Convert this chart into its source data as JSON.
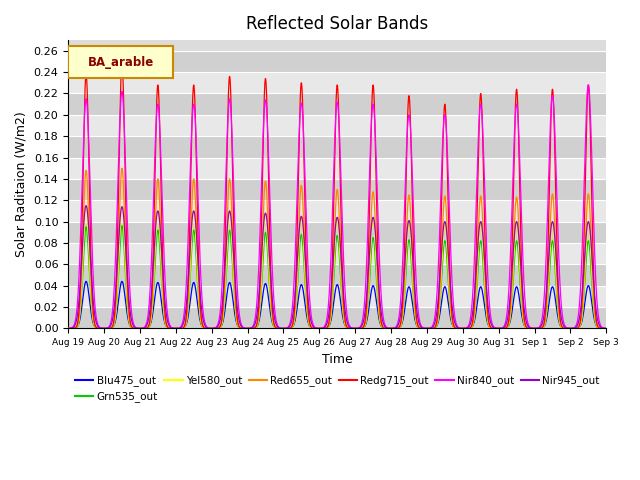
{
  "title": "Reflected Solar Bands",
  "xlabel": "Time",
  "ylabel": "Solar Raditaion (W/m2)",
  "ylim": [
    0,
    0.27
  ],
  "yticks": [
    0.0,
    0.02,
    0.04,
    0.06,
    0.08,
    0.1,
    0.12,
    0.14,
    0.16,
    0.18,
    0.2,
    0.22,
    0.24,
    0.26
  ],
  "legend_label": "BA_arable",
  "n_days": 15,
  "points_per_day": 500,
  "start_day": 19,
  "bg_color": "#dcdcdc",
  "title_fontsize": 12,
  "axis_fontsize": 9,
  "peak_hw": 0.1,
  "special_peaks": {
    "Redg715_out": [
      0.238,
      0.248,
      0.228,
      0.228,
      0.236,
      0.234,
      0.23,
      0.228,
      0.228,
      0.218,
      0.21,
      0.22,
      0.224,
      0.224,
      0.228
    ],
    "Nir840_out": [
      0.215,
      0.222,
      0.21,
      0.21,
      0.215,
      0.214,
      0.211,
      0.212,
      0.21,
      0.2,
      0.2,
      0.21,
      0.21,
      0.218,
      0.228
    ],
    "Red655_out": [
      0.148,
      0.15,
      0.14,
      0.14,
      0.14,
      0.138,
      0.134,
      0.13,
      0.128,
      0.125,
      0.124,
      0.124,
      0.123,
      0.126,
      0.126
    ],
    "Yel580_out": [
      0.115,
      0.114,
      0.11,
      0.11,
      0.11,
      0.108,
      0.105,
      0.104,
      0.104,
      0.101,
      0.1,
      0.1,
      0.1,
      0.1,
      0.1
    ],
    "Grn535_out": [
      0.095,
      0.096,
      0.092,
      0.092,
      0.092,
      0.09,
      0.088,
      0.087,
      0.085,
      0.083,
      0.082,
      0.082,
      0.082,
      0.082,
      0.082
    ],
    "Blu475_out": [
      0.044,
      0.044,
      0.043,
      0.043,
      0.043,
      0.042,
      0.041,
      0.041,
      0.04,
      0.039,
      0.039,
      0.039,
      0.039,
      0.039,
      0.04
    ],
    "Nir945_out": [
      0.115,
      0.114,
      0.11,
      0.11,
      0.11,
      0.108,
      0.105,
      0.104,
      0.104,
      0.101,
      0.1,
      0.1,
      0.1,
      0.1,
      0.1
    ]
  },
  "band_configs": {
    "Blu475_out": {
      "color": "#0000ff"
    },
    "Grn535_out": {
      "color": "#00cc00"
    },
    "Yel580_out": {
      "color": "#ffff00"
    },
    "Red655_out": {
      "color": "#ff8800"
    },
    "Redg715_out": {
      "color": "#ff0000"
    },
    "Nir840_out": {
      "color": "#ff00ff"
    },
    "Nir945_out": {
      "color": "#9900cc"
    }
  },
  "band_order": [
    "Blu475_out",
    "Grn535_out",
    "Yel580_out",
    "Red655_out",
    "Redg715_out",
    "Nir840_out",
    "Nir945_out"
  ],
  "legend_entries": [
    {
      "label": "Blu475_out",
      "color": "#0000ff"
    },
    {
      "label": "Grn535_out",
      "color": "#00cc00"
    },
    {
      "label": "Yel580_out",
      "color": "#ffff00"
    },
    {
      "label": "Red655_out",
      "color": "#ff8800"
    },
    {
      "label": "Redg715_out",
      "color": "#ff0000"
    },
    {
      "label": "Nir840_out",
      "color": "#ff00ff"
    },
    {
      "label": "Nir945_out",
      "color": "#9900cc"
    }
  ]
}
